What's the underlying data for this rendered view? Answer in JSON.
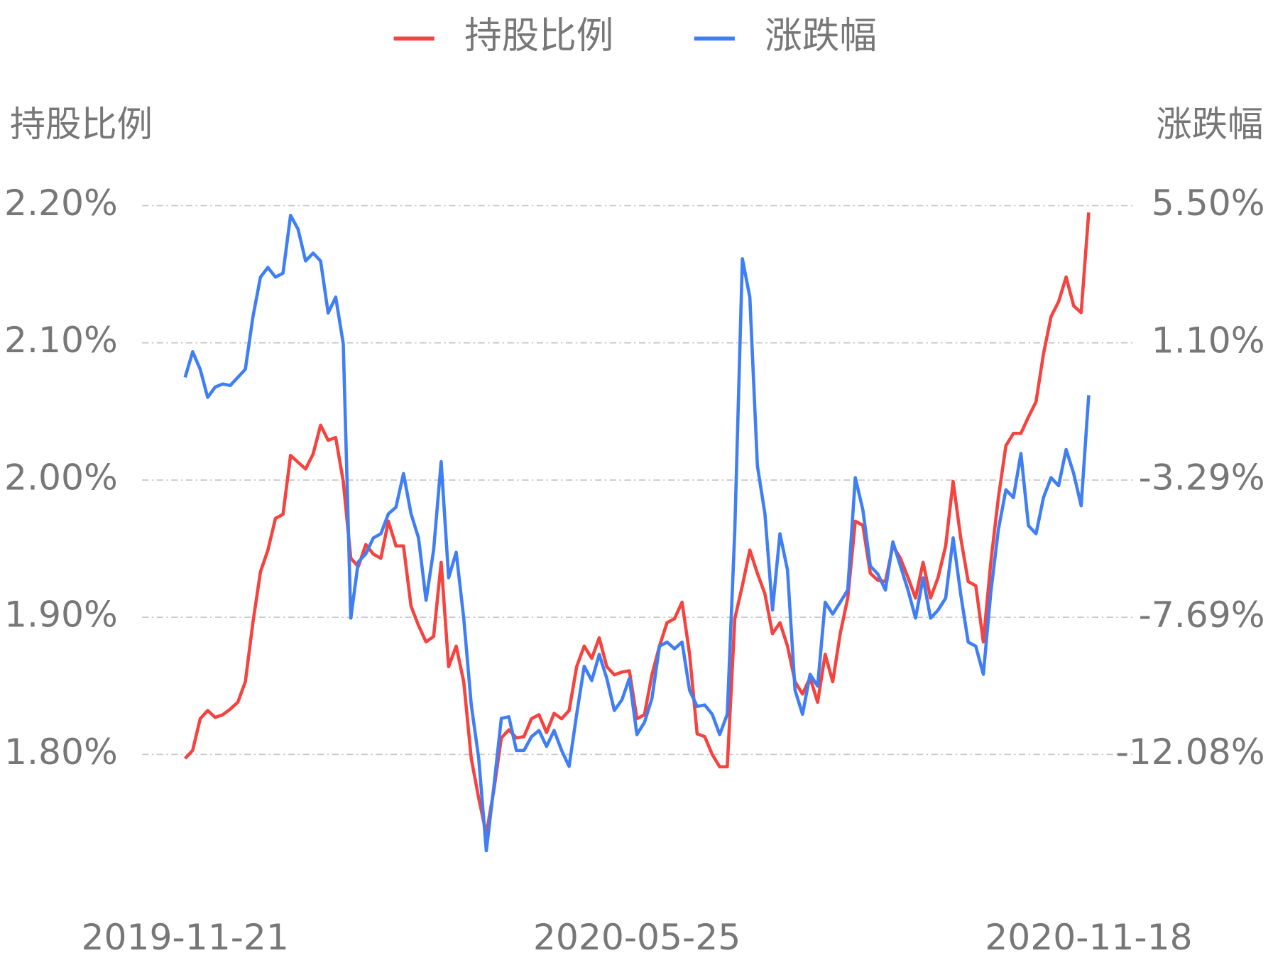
{
  "chart_data": {
    "type": "line",
    "y_label": "持股比例",
    "y2_label": "涨跌幅",
    "categories": [
      "2019-11-21",
      null,
      null,
      null,
      null,
      null,
      null,
      null,
      null,
      null,
      null,
      null,
      null,
      null,
      null,
      null,
      null,
      null,
      null,
      null,
      null,
      null,
      null,
      null,
      null,
      null,
      null,
      null,
      null,
      null,
      null,
      null,
      null,
      null,
      null,
      null,
      null,
      null,
      null,
      null,
      null,
      null,
      null,
      null,
      null,
      null,
      null,
      null,
      null,
      null,
      null,
      null,
      null,
      null,
      null,
      null,
      null,
      null,
      null,
      null,
      "2020-05-25",
      null,
      null,
      null,
      null,
      null,
      null,
      null,
      null,
      null,
      null,
      null,
      null,
      null,
      null,
      null,
      null,
      null,
      null,
      null,
      null,
      null,
      null,
      null,
      null,
      null,
      null,
      null,
      null,
      null,
      null,
      null,
      null,
      null,
      null,
      null,
      null,
      null,
      null,
      null,
      null,
      null,
      null,
      null,
      null,
      null,
      null,
      null,
      null,
      null,
      null,
      null,
      null,
      null,
      null,
      null,
      null,
      null,
      null,
      null,
      "2020-11-18"
    ],
    "series": [
      {
        "name": "持股比例",
        "color": "#f5433f",
        "axis": "y",
        "values": [
          1.797,
          1.803,
          1.826,
          1.832,
          1.827,
          1.829,
          1.833,
          1.838,
          1.853,
          1.896,
          1.933,
          1.949,
          1.972,
          1.975,
          2.018,
          2.013,
          2.008,
          2.019,
          2.04,
          2.029,
          2.031,
          1.999,
          1.943,
          1.937,
          1.953,
          1.946,
          1.943,
          1.97,
          1.952,
          1.952,
          1.908,
          1.894,
          1.882,
          1.886,
          1.94,
          1.864,
          1.879,
          1.853,
          1.797,
          1.768,
          1.742,
          1.774,
          1.812,
          1.818,
          1.812,
          1.813,
          1.826,
          1.829,
          1.816,
          1.83,
          1.826,
          1.832,
          1.864,
          1.879,
          1.87,
          1.885,
          1.864,
          1.858,
          1.86,
          1.861,
          1.826,
          1.829,
          1.858,
          1.879,
          1.896,
          1.899,
          1.911,
          1.873,
          1.815,
          1.813,
          1.8,
          1.791,
          1.791,
          1.899,
          1.923,
          1.949,
          1.932,
          1.917,
          1.888,
          1.896,
          1.879,
          1.853,
          1.844,
          1.856,
          1.838,
          1.873,
          1.853,
          1.888,
          1.914,
          1.97,
          1.967,
          1.932,
          1.927,
          1.926,
          1.952,
          1.943,
          1.929,
          1.914,
          1.94,
          1.914,
          1.929,
          1.952,
          1.999,
          1.958,
          1.926,
          1.923,
          1.882,
          1.94,
          1.987,
          2.025,
          2.034,
          2.034,
          2.046,
          2.057,
          2.092,
          2.119,
          2.13,
          2.148,
          2.127,
          2.122,
          2.195
        ]
      },
      {
        "name": "涨跌幅",
        "color": "#3f7ef5",
        "axis": "y2",
        "values": [
          0.0,
          0.82,
          0.26,
          -0.64,
          -0.31,
          -0.21,
          -0.26,
          0.0,
          0.26,
          1.93,
          3.21,
          3.52,
          3.21,
          3.34,
          5.19,
          4.75,
          3.73,
          3.98,
          3.73,
          2.06,
          2.57,
          1.08,
          -7.71,
          -5.91,
          -5.65,
          -5.14,
          -5.01,
          -4.37,
          -4.16,
          -3.08,
          -4.37,
          -5.14,
          -7.14,
          -5.53,
          -2.7,
          -6.42,
          -5.6,
          -7.71,
          -10.49,
          -12.21,
          -15.16,
          -13.11,
          -10.92,
          -10.87,
          -11.95,
          -11.95,
          -11.51,
          -11.31,
          -11.82,
          -11.31,
          -11.95,
          -12.46,
          -10.79,
          -9.25,
          -9.71,
          -8.87,
          -9.64,
          -10.67,
          -10.33,
          -9.64,
          -11.44,
          -11.05,
          -10.28,
          -8.61,
          -8.48,
          -8.69,
          -8.48,
          -10.02,
          -10.54,
          -10.49,
          -10.79,
          -11.44,
          -10.79,
          -4.88,
          3.8,
          2.57,
          -2.83,
          -4.37,
          -7.45,
          -5.01,
          -6.17,
          -10.02,
          -10.79,
          -9.51,
          -9.89,
          -7.2,
          -7.58,
          -7.2,
          -6.81,
          -3.21,
          -4.24,
          -6.04,
          -6.3,
          -6.81,
          -5.27,
          -6.04,
          -6.81,
          -7.71,
          -6.42,
          -7.71,
          -7.45,
          -7.07,
          -5.14,
          -6.94,
          -8.48,
          -8.61,
          -9.51,
          -6.89,
          -4.88,
          -3.6,
          -3.85,
          -2.44,
          -4.75,
          -5.01,
          -3.85,
          -3.21,
          -3.47,
          -2.31,
          -3.08,
          -4.11,
          -0.57
        ]
      }
    ],
    "ylim": [
      1.7,
      2.2
    ],
    "yticks": [
      {
        "value": 1.8,
        "label": "1.80%"
      },
      {
        "value": 1.9,
        "label": "1.90%"
      },
      {
        "value": 2.0,
        "label": "2.00%"
      },
      {
        "value": 2.1,
        "label": "2.10%"
      },
      {
        "value": 2.2,
        "label": "2.20%"
      }
    ],
    "y2lim": [
      -16.47,
      5.5
    ],
    "y2ticks": [
      {
        "value": -12.08,
        "label": "-12.08%"
      },
      {
        "value": -7.69,
        "label": "-7.69%"
      },
      {
        "value": -3.29,
        "label": "-3.29%"
      },
      {
        "value": 1.1,
        "label": "1.10%"
      },
      {
        "value": 5.5,
        "label": "5.50%"
      }
    ],
    "grid": true,
    "legend": "top"
  }
}
